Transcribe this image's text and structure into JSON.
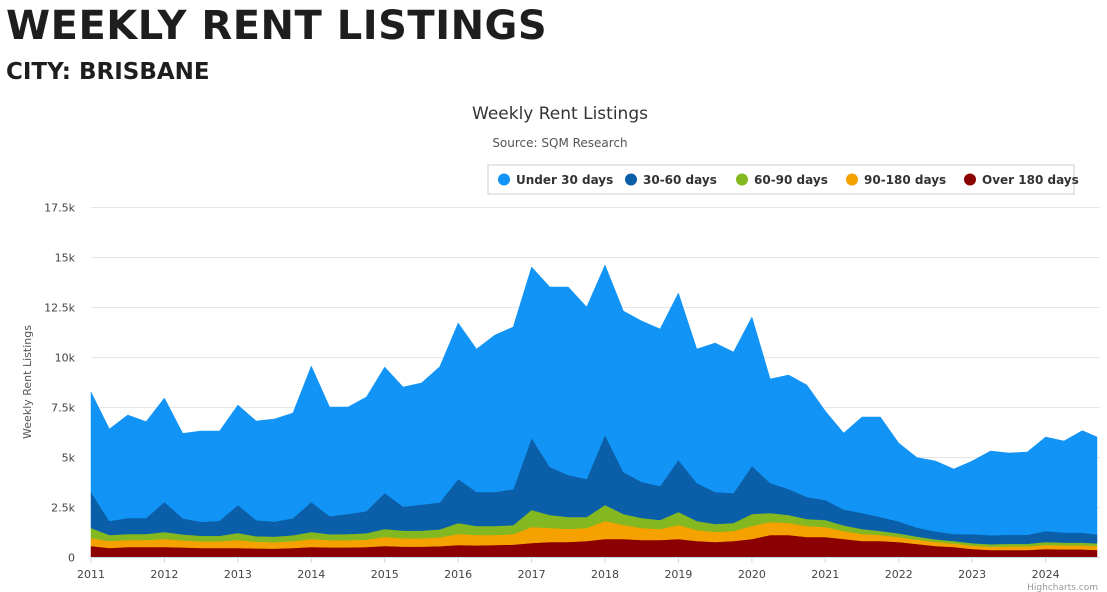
{
  "page": {
    "heading": "WEEKLY RENT LISTINGS",
    "subheading": "CITY: BRISBANE"
  },
  "credits": "Highcharts.com",
  "chart_data": {
    "type": "area",
    "stacking": "normal",
    "title": "Weekly Rent Listings",
    "subtitle": "Source: SQM Research",
    "xlabel": "",
    "ylabel": "Weekly Rent Listings",
    "xlim": [
      2011.0,
      2024.7
    ],
    "ylim": [
      0,
      17500
    ],
    "x_ticks": [
      "2011",
      "2012",
      "2013",
      "2014",
      "2015",
      "2016",
      "2017",
      "2018",
      "2019",
      "2020",
      "2021",
      "2022",
      "2023",
      "2024"
    ],
    "y_ticks": [
      {
        "value": 0,
        "label": "0"
      },
      {
        "value": 2500,
        "label": "2.5k"
      },
      {
        "value": 5000,
        "label": "5k"
      },
      {
        "value": 7500,
        "label": "7.5k"
      },
      {
        "value": 10000,
        "label": "10k"
      },
      {
        "value": 12500,
        "label": "12.5k"
      },
      {
        "value": 15000,
        "label": "15k"
      },
      {
        "value": 17500,
        "label": "17.5k"
      }
    ],
    "grid": true,
    "legend_position": "top-right",
    "x": [
      2011.0,
      2011.25,
      2011.5,
      2011.75,
      2012.0,
      2012.25,
      2012.5,
      2012.75,
      2013.0,
      2013.25,
      2013.5,
      2013.75,
      2014.0,
      2014.25,
      2014.5,
      2014.75,
      2015.0,
      2015.25,
      2015.5,
      2015.75,
      2016.0,
      2016.25,
      2016.5,
      2016.75,
      2017.0,
      2017.25,
      2017.5,
      2017.75,
      2018.0,
      2018.25,
      2018.5,
      2018.75,
      2019.0,
      2019.25,
      2019.5,
      2019.75,
      2020.0,
      2020.25,
      2020.5,
      2020.75,
      2021.0,
      2021.25,
      2021.5,
      2021.75,
      2022.0,
      2022.25,
      2022.5,
      2022.75,
      2023.0,
      2023.25,
      2023.5,
      2023.75,
      2024.0,
      2024.25,
      2024.5,
      2024.7
    ],
    "series": [
      {
        "name": "Over 180 days",
        "color": "#8b0000",
        "values": [
          550,
          450,
          500,
          500,
          500,
          480,
          450,
          450,
          450,
          430,
          420,
          450,
          500,
          480,
          480,
          500,
          550,
          520,
          520,
          540,
          600,
          580,
          600,
          620,
          700,
          750,
          750,
          800,
          900,
          900,
          850,
          850,
          900,
          800,
          750,
          800,
          900,
          1100,
          1100,
          1000,
          1000,
          900,
          800,
          800,
          750,
          650,
          550,
          500,
          400,
          350,
          350,
          350,
          400,
          380,
          380,
          350
        ]
      },
      {
        "name": "90-180 days",
        "color": "#f5a100",
        "values": [
          400,
          350,
          350,
          350,
          400,
          350,
          330,
          330,
          400,
          330,
          320,
          340,
          400,
          360,
          360,
          370,
          450,
          420,
          420,
          440,
          550,
          520,
          500,
          520,
          800,
          700,
          650,
          650,
          900,
          700,
          600,
          550,
          700,
          550,
          500,
          500,
          650,
          650,
          600,
          550,
          500,
          400,
          350,
          300,
          250,
          220,
          200,
          180,
          170,
          170,
          180,
          180,
          200,
          200,
          200,
          200
        ]
      },
      {
        "name": "60-90 days",
        "color": "#84b820",
        "values": [
          500,
          300,
          300,
          300,
          350,
          300,
          280,
          280,
          350,
          280,
          280,
          300,
          350,
          300,
          310,
          320,
          400,
          380,
          380,
          400,
          550,
          450,
          450,
          450,
          850,
          650,
          600,
          550,
          800,
          550,
          500,
          450,
          650,
          450,
          400,
          400,
          600,
          450,
          400,
          350,
          350,
          280,
          250,
          200,
          180,
          150,
          130,
          120,
          120,
          120,
          130,
          130,
          150,
          140,
          140,
          130
        ]
      },
      {
        "name": "30-60 days",
        "color": "#0a5fa8",
        "values": [
          1800,
          700,
          800,
          800,
          1500,
          800,
          700,
          750,
          1400,
          800,
          750,
          850,
          1500,
          900,
          1000,
          1100,
          1800,
          1200,
          1300,
          1350,
          2200,
          1700,
          1700,
          1800,
          3600,
          2400,
          2100,
          1900,
          3500,
          2100,
          1800,
          1700,
          2600,
          1900,
          1600,
          1500,
          2400,
          1500,
          1300,
          1100,
          1000,
          800,
          800,
          700,
          600,
          450,
          400,
          350,
          450,
          450,
          450,
          450,
          550,
          500,
          500,
          450
        ]
      },
      {
        "name": "Under 30 days",
        "color": "#1194f6",
        "values": [
          5000,
          4600,
          5150,
          4820,
          5200,
          4250,
          4540,
          4490,
          5000,
          4960,
          5130,
          5260,
          6800,
          5460,
          5350,
          5710,
          6300,
          5980,
          6080,
          6790,
          7800,
          7150,
          7850,
          8110,
          8550,
          9000,
          9400,
          8600,
          8500,
          8050,
          8050,
          7850,
          8350,
          6700,
          7450,
          7050,
          7450,
          5200,
          5700,
          5600,
          4450,
          3820,
          4800,
          5000,
          3920,
          3500,
          3520,
          3250,
          3660,
          4210,
          4090,
          4140,
          4700,
          4580,
          5100,
          4870
        ]
      }
    ]
  }
}
